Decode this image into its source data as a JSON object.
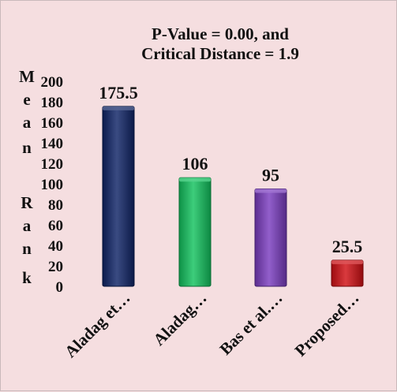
{
  "chart_data": {
    "type": "bar",
    "title_lines": [
      "P-Value = 0.00, and",
      "Critical Distance = 1.9"
    ],
    "ylabel_letters": [
      "M",
      "e",
      "a",
      "n",
      "R",
      "a",
      "n",
      "k"
    ],
    "categories": [
      "Aladag et…",
      "Aladag…",
      "Bas et al.…",
      "Proposed…"
    ],
    "values": [
      175.5,
      106,
      95,
      25.5
    ],
    "data_labels": [
      "175.5",
      "106",
      "95",
      "25.5"
    ],
    "ylim": [
      0,
      200
    ],
    "yticks": [
      0,
      20,
      40,
      60,
      80,
      100,
      120,
      140,
      160,
      180,
      200
    ],
    "grid": false,
    "bar_colors": [
      "#0f2466",
      "#12c25e",
      "#7a3cc0",
      "#d10f14"
    ]
  }
}
